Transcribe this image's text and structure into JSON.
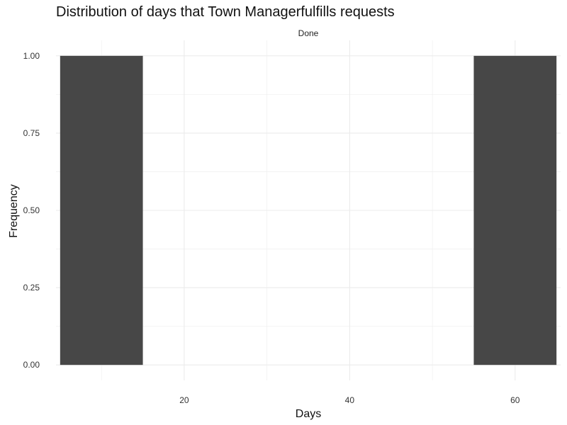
{
  "chart_data": {
    "type": "bar",
    "title": "Distribution of days that Town Managerfulfills requests",
    "facet_label": "Done",
    "xlabel": "Days",
    "ylabel": "Frequency",
    "bins": [
      {
        "x_start": 5,
        "x_end": 15,
        "count": 1
      },
      {
        "x_start": 55,
        "x_end": 65,
        "count": 1
      }
    ],
    "xlim": [
      4.5,
      65.5
    ],
    "ylim": [
      -0.05,
      1.05
    ],
    "x_ticks": [
      20,
      40,
      60
    ],
    "x_tick_labels": [
      "20",
      "40",
      "60"
    ],
    "y_ticks": [
      0,
      0.25,
      0.5,
      0.75,
      1
    ],
    "y_tick_labels": [
      "0.00",
      "0.25",
      "0.50",
      "0.75",
      "1.00"
    ],
    "x_minor_ticks": [
      10,
      30,
      50
    ],
    "y_minor_ticks": [
      0.125,
      0.375,
      0.625,
      0.875
    ],
    "grid": true,
    "bar_color": "#474747",
    "grid_color": "#ebebeb"
  }
}
